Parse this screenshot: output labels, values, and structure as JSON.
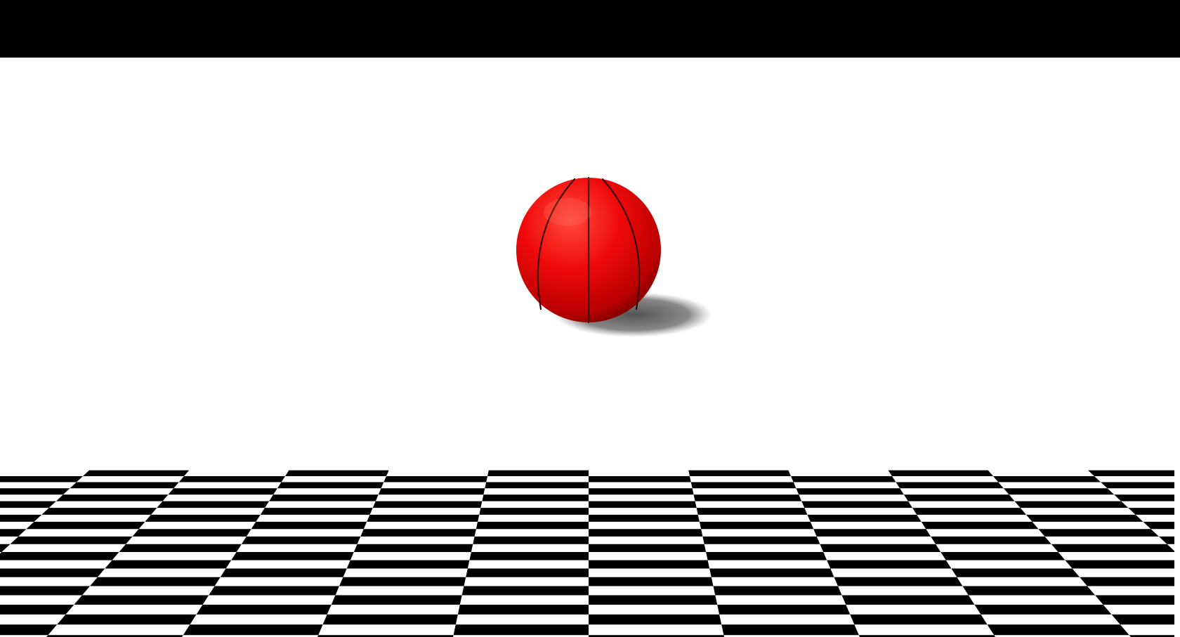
{
  "scene": {
    "sky_color": "#000000",
    "floor_colors": [
      "#ffffff",
      "#000000"
    ],
    "ball_color": "#ff1a1a",
    "ball_seam_color": "#3a0000",
    "shadow_color": "#5a5a5a"
  }
}
